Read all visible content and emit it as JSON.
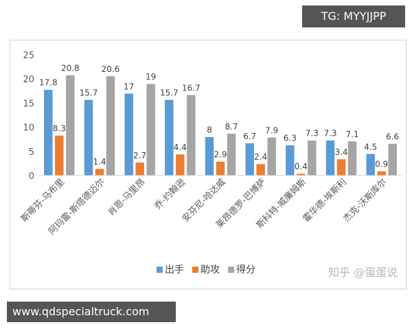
{
  "watermarks": {
    "top": "TG: MYYJJPP",
    "bottom": "www.qdspecialtruck.com",
    "zhihu": "知乎 @蛋蛋说"
  },
  "chart_data": {
    "type": "bar",
    "categories": [
      "斯蒂芬-马布里",
      "阿玛雷-斯塔德迈尔",
      "肖恩-马里昂",
      "乔-约翰逊",
      "安芬尼-哈达威",
      "莱昂德罗-巴博萨",
      "斯科特-威廉姆斯",
      "霍华德-埃斯利",
      "杰克-沃斯库尔"
    ],
    "series": [
      {
        "name": "出手",
        "color": "#5b9bd5",
        "values": [
          17.8,
          15.7,
          17,
          15.7,
          8,
          6.7,
          6.3,
          7.3,
          4.5
        ]
      },
      {
        "name": "助攻",
        "color": "#ed7d31",
        "values": [
          8.3,
          1.4,
          2.7,
          4.4,
          2.9,
          2.4,
          0.4,
          3.4,
          0.9
        ]
      },
      {
        "name": "得分",
        "color": "#a5a5a5",
        "values": [
          20.8,
          20.6,
          19,
          16.7,
          8.7,
          7.9,
          7.3,
          7.1,
          6.6
        ]
      }
    ],
    "yticks": [
      "0",
      "5",
      "10",
      "15",
      "20",
      "25"
    ],
    "ylim": [
      0,
      25
    ],
    "grid": false,
    "legend": "bottom"
  }
}
